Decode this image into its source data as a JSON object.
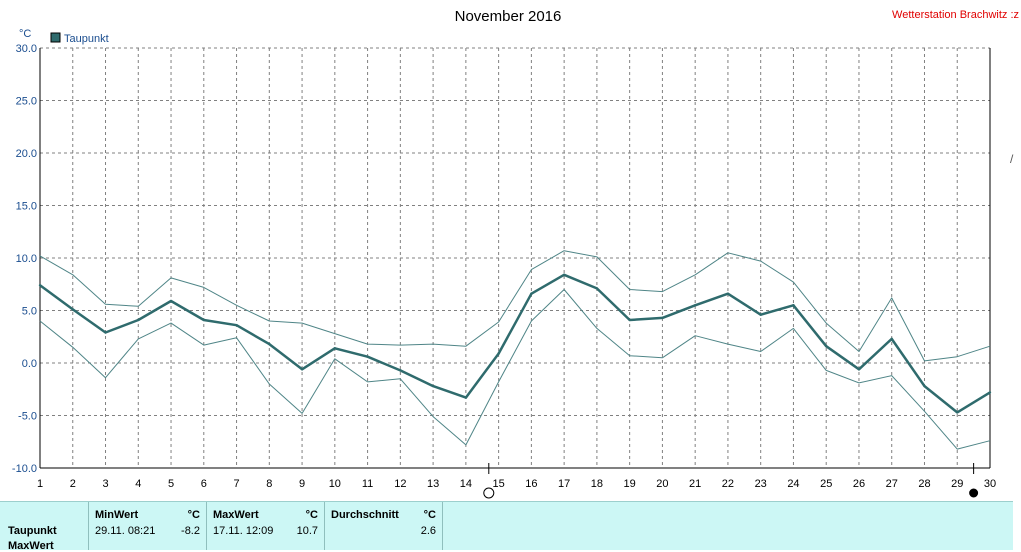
{
  "chart_data": {
    "type": "line",
    "title": "November 2016",
    "station": "Wetterstation Brachwitz :z",
    "ylabel": "°C",
    "legend": "Taupunkt",
    "ylim": [
      -10,
      30
    ],
    "xlim": [
      1,
      30
    ],
    "yticks": [
      "30.0",
      "25.0",
      "20.0",
      "15.0",
      "10.0",
      "5.0",
      "0.0",
      "-5.0",
      "-10.0"
    ],
    "x": [
      1,
      2,
      3,
      4,
      5,
      6,
      7,
      8,
      9,
      10,
      11,
      12,
      13,
      14,
      15,
      16,
      17,
      18,
      19,
      20,
      21,
      22,
      23,
      24,
      25,
      26,
      27,
      28,
      29,
      30
    ],
    "series": [
      {
        "name": "Taupunkt",
        "role": "avg",
        "color": "#2f6b6d",
        "values": [
          7.4,
          5.1,
          2.9,
          4.1,
          5.9,
          4.1,
          3.6,
          1.8,
          -0.6,
          1.4,
          0.6,
          -0.7,
          -2.2,
          -3.3,
          0.9,
          6.6,
          8.4,
          7.1,
          4.1,
          4.3,
          5.5,
          6.6,
          4.6,
          5.5,
          1.6,
          -0.6,
          2.3,
          -2.2,
          -4.7,
          -2.8
        ]
      },
      {
        "role": "max",
        "color": "#4f8587",
        "values": [
          10.2,
          8.4,
          5.6,
          5.4,
          8.1,
          7.2,
          5.5,
          4.0,
          3.8,
          2.8,
          1.8,
          1.7,
          1.8,
          1.6,
          3.9,
          8.9,
          10.7,
          10.1,
          7.0,
          6.8,
          8.4,
          10.5,
          9.7,
          7.7,
          3.8,
          1.1,
          6.2,
          0.2,
          0.6,
          1.6
        ]
      },
      {
        "role": "min",
        "color": "#4f8587",
        "values": [
          4.0,
          1.5,
          -1.4,
          2.3,
          3.8,
          1.7,
          2.4,
          -2.0,
          -4.8,
          0.4,
          -1.8,
          -1.5,
          -5.1,
          -7.8,
          -1.8,
          4.0,
          7.0,
          3.3,
          0.7,
          0.5,
          2.6,
          1.8,
          1.1,
          3.3,
          -0.7,
          -1.9,
          -1.2,
          -4.6,
          -8.2,
          -7.4
        ]
      }
    ],
    "markers": [
      {
        "day": 14.7,
        "type": "new-moon"
      },
      {
        "day": 29.5,
        "type": "full-moon"
      }
    ],
    "grid": true
  },
  "stats": {
    "row_labels": [
      "Taupunkt",
      "MaxWert"
    ],
    "min": {
      "header": "MinWert",
      "unit": "°C",
      "time": "29.11.  08:21",
      "value": "-8.2"
    },
    "max": {
      "header": "MaxWert",
      "unit": "°C",
      "time": "17.11.  12:09",
      "value": "10.7"
    },
    "avg": {
      "header": "Durchschnitt",
      "unit": "°C",
      "value": "2.6"
    }
  },
  "colors": {
    "grid": "#808080",
    "line": "#2f6b6d",
    "panel": "#ccf7f5"
  }
}
